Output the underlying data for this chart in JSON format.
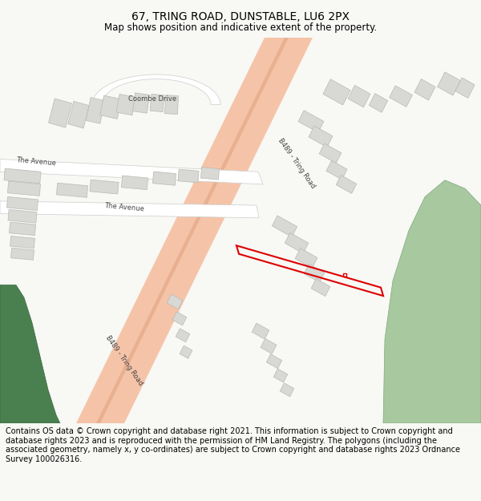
{
  "title": "67, TRING ROAD, DUNSTABLE, LU6 2PX",
  "subtitle": "Map shows position and indicative extent of the property.",
  "footer": "Contains OS data © Crown copyright and database right 2021. This information is subject to Crown copyright and database rights 2023 and is reproduced with the permission of HM Land Registry. The polygons (including the associated geometry, namely x, y co-ordinates) are subject to Crown copyright and database rights 2023 Ordnance Survey 100026316.",
  "bg_color": "#f8f8f5",
  "map_bg": "#f0ede5",
  "road_color": "#f5c4a8",
  "road_border": "#dba882",
  "building_color": "#d8d8d5",
  "building_border": "#b8b8b5",
  "green_color": "#4a8050",
  "light_green": "#a8c8a0",
  "plot_outline_color": "#dd0000",
  "title_fontsize": 10,
  "subtitle_fontsize": 8.5,
  "footer_fontsize": 7,
  "figsize": [
    6.0,
    6.25
  ],
  "dpi": 100,
  "road_label_color": "#444444",
  "road_label_size": 6,
  "avenue_color": "#ffffff",
  "avenue_border": "#cccccc"
}
